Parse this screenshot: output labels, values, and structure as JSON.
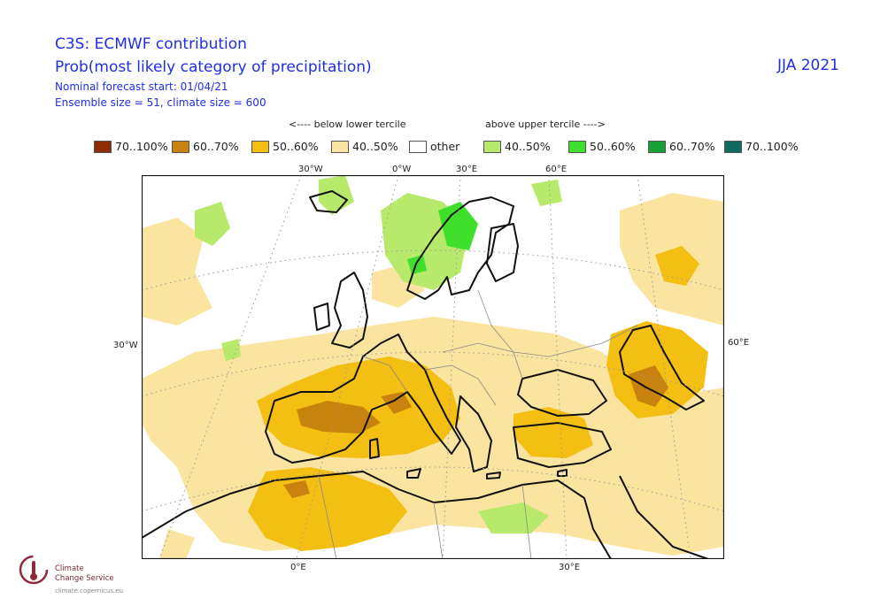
{
  "header": {
    "title": "C3S: ECMWF contribution",
    "subtitle": "Prob(most likely category of precipitation)",
    "forecast_start": "Nominal forecast start: 01/04/21",
    "ensemble": "Ensemble size = 51, climate size = 600",
    "season": "JJA 2021"
  },
  "tercile": {
    "below": "<---- below lower tercile",
    "above": "above upper tercile ---->"
  },
  "legend": [
    {
      "label": "70..100%",
      "color": "#8c2d04"
    },
    {
      "label": "60..70%",
      "color": "#c8820e"
    },
    {
      "label": "50..60%",
      "color": "#f2bf12"
    },
    {
      "label": "40..50%",
      "color": "#fbe3a0"
    },
    {
      "label": "other",
      "color": "#ffffff"
    },
    {
      "label": "40..50%",
      "color": "#b7ea6a"
    },
    {
      "label": "50..60%",
      "color": "#3ee02b"
    },
    {
      "label": "60..70%",
      "color": "#16a035"
    },
    {
      "label": "70..100%",
      "color": "#0e6a5e"
    }
  ],
  "axes": {
    "top": [
      "30°W",
      "0°W",
      "30°E",
      "60°E"
    ],
    "left": "30°W",
    "right": "60°E",
    "bottom": [
      "0°E",
      "30°E"
    ]
  },
  "logo": {
    "line1": "Climate",
    "line2": "Change Service",
    "url": "climate.copernicus.eu"
  }
}
